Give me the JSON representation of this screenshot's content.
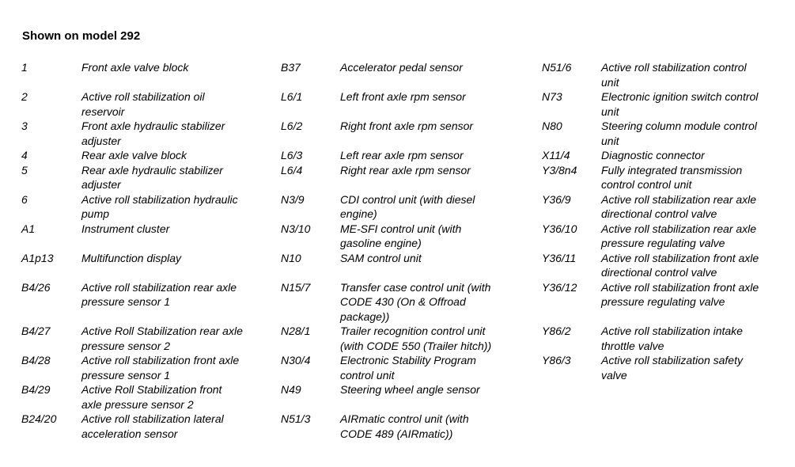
{
  "colors": {
    "background": "#ffffff",
    "text": "#000000"
  },
  "heading": "Shown on model 292",
  "legend": {
    "rows": [
      {
        "cells": [
          {
            "code": "1",
            "desc": "Front axle valve block"
          },
          {
            "code": "B37",
            "desc": "Accelerator pedal sensor"
          },
          {
            "code": "N51/6",
            "desc": "Active roll stabilization control\nunit"
          }
        ]
      },
      {
        "cells": [
          {
            "code": "2",
            "desc": "Active roll stabilization oil\nreservoir"
          },
          {
            "code": "L6/1",
            "desc": "Left front axle rpm sensor"
          },
          {
            "code": "N73",
            "desc": "Electronic ignition switch control\nunit"
          }
        ]
      },
      {
        "cells": [
          {
            "code": "3",
            "desc": "Front axle hydraulic stabilizer\nadjuster"
          },
          {
            "code": "L6/2",
            "desc": "Right front axle rpm sensor"
          },
          {
            "code": "N80",
            "desc": "Steering column module control\nunit"
          }
        ]
      },
      {
        "cells": [
          {
            "code": "4",
            "desc": "Rear axle valve block"
          },
          {
            "code": "L6/3",
            "desc": "Left rear axle rpm sensor"
          },
          {
            "code": "X11/4",
            "desc": "Diagnostic connector"
          }
        ]
      },
      {
        "cells": [
          {
            "code": "5",
            "desc": "Rear axle hydraulic stabilizer\nadjuster"
          },
          {
            "code": "L6/4",
            "desc": "Right rear axle rpm sensor"
          },
          {
            "code": "Y3/8n4",
            "desc": "Fully integrated transmission\ncontrol control unit"
          }
        ]
      },
      {
        "cells": [
          {
            "code": "6",
            "desc": "Active roll stabilization hydraulic\npump"
          },
          {
            "code": "N3/9",
            "desc": "CDI control unit (with diesel\nengine)"
          },
          {
            "code": "Y36/9",
            "desc": "Active roll stabilization rear axle\ndirectional control valve"
          }
        ]
      },
      {
        "cells": [
          {
            "code": "A1",
            "desc": "Instrument cluster"
          },
          {
            "code": "N3/10",
            "desc": "ME-SFI control unit (with\ngasoline engine)"
          },
          {
            "code": "Y36/10",
            "desc": "Active roll stabilization rear axle\npressure regulating valve"
          }
        ]
      },
      {
        "cells": [
          {
            "code": "A1p13",
            "desc": "Multifunction display"
          },
          {
            "code": "N10",
            "desc": "SAM control unit"
          },
          {
            "code": "Y36/11",
            "desc": "Active roll stabilization front axle\ndirectional control valve"
          }
        ]
      },
      {
        "cells": [
          {
            "code": "B4/26",
            "desc": "Active roll stabilization rear axle\npressure sensor 1"
          },
          {
            "code": "N15/7",
            "desc": "Transfer case control unit (with\nCODE 430 (On & Offroad\npackage))"
          },
          {
            "code": "Y36/12",
            "desc": "Active roll stabilization front axle\npressure regulating valve"
          }
        ]
      },
      {
        "cells": [
          {
            "code": "B4/27",
            "desc": "Active Roll Stabilization rear axle\npressure sensor 2"
          },
          {
            "code": "N28/1",
            "desc": "Trailer recognition control unit\n(with CODE 550 (Trailer hitch))"
          },
          {
            "code": "Y86/2",
            "desc": "Active roll stabilization intake\nthrottle valve"
          }
        ]
      },
      {
        "cells": [
          {
            "code": "B4/28",
            "desc": "Active roll stabilization front axle\npressure sensor 1"
          },
          {
            "code": "N30/4",
            "desc": "Electronic Stability Program\ncontrol unit"
          },
          {
            "code": "Y86/3",
            "desc": "Active roll stabilization safety\nvalve"
          }
        ]
      },
      {
        "cells": [
          {
            "code": "B4/29",
            "desc": "Active Roll Stabilization front\naxle pressure sensor 2"
          },
          {
            "code": "N49",
            "desc": "Steering wheel angle sensor"
          },
          {
            "code": "",
            "desc": ""
          }
        ]
      },
      {
        "cells": [
          {
            "code": "B24/20",
            "desc": "Active roll stabilization lateral\nacceleration sensor"
          },
          {
            "code": "N51/3",
            "desc": "AIRmatic control unit (with\nCODE 489 (AIRmatic))"
          },
          {
            "code": "",
            "desc": ""
          }
        ]
      }
    ]
  }
}
